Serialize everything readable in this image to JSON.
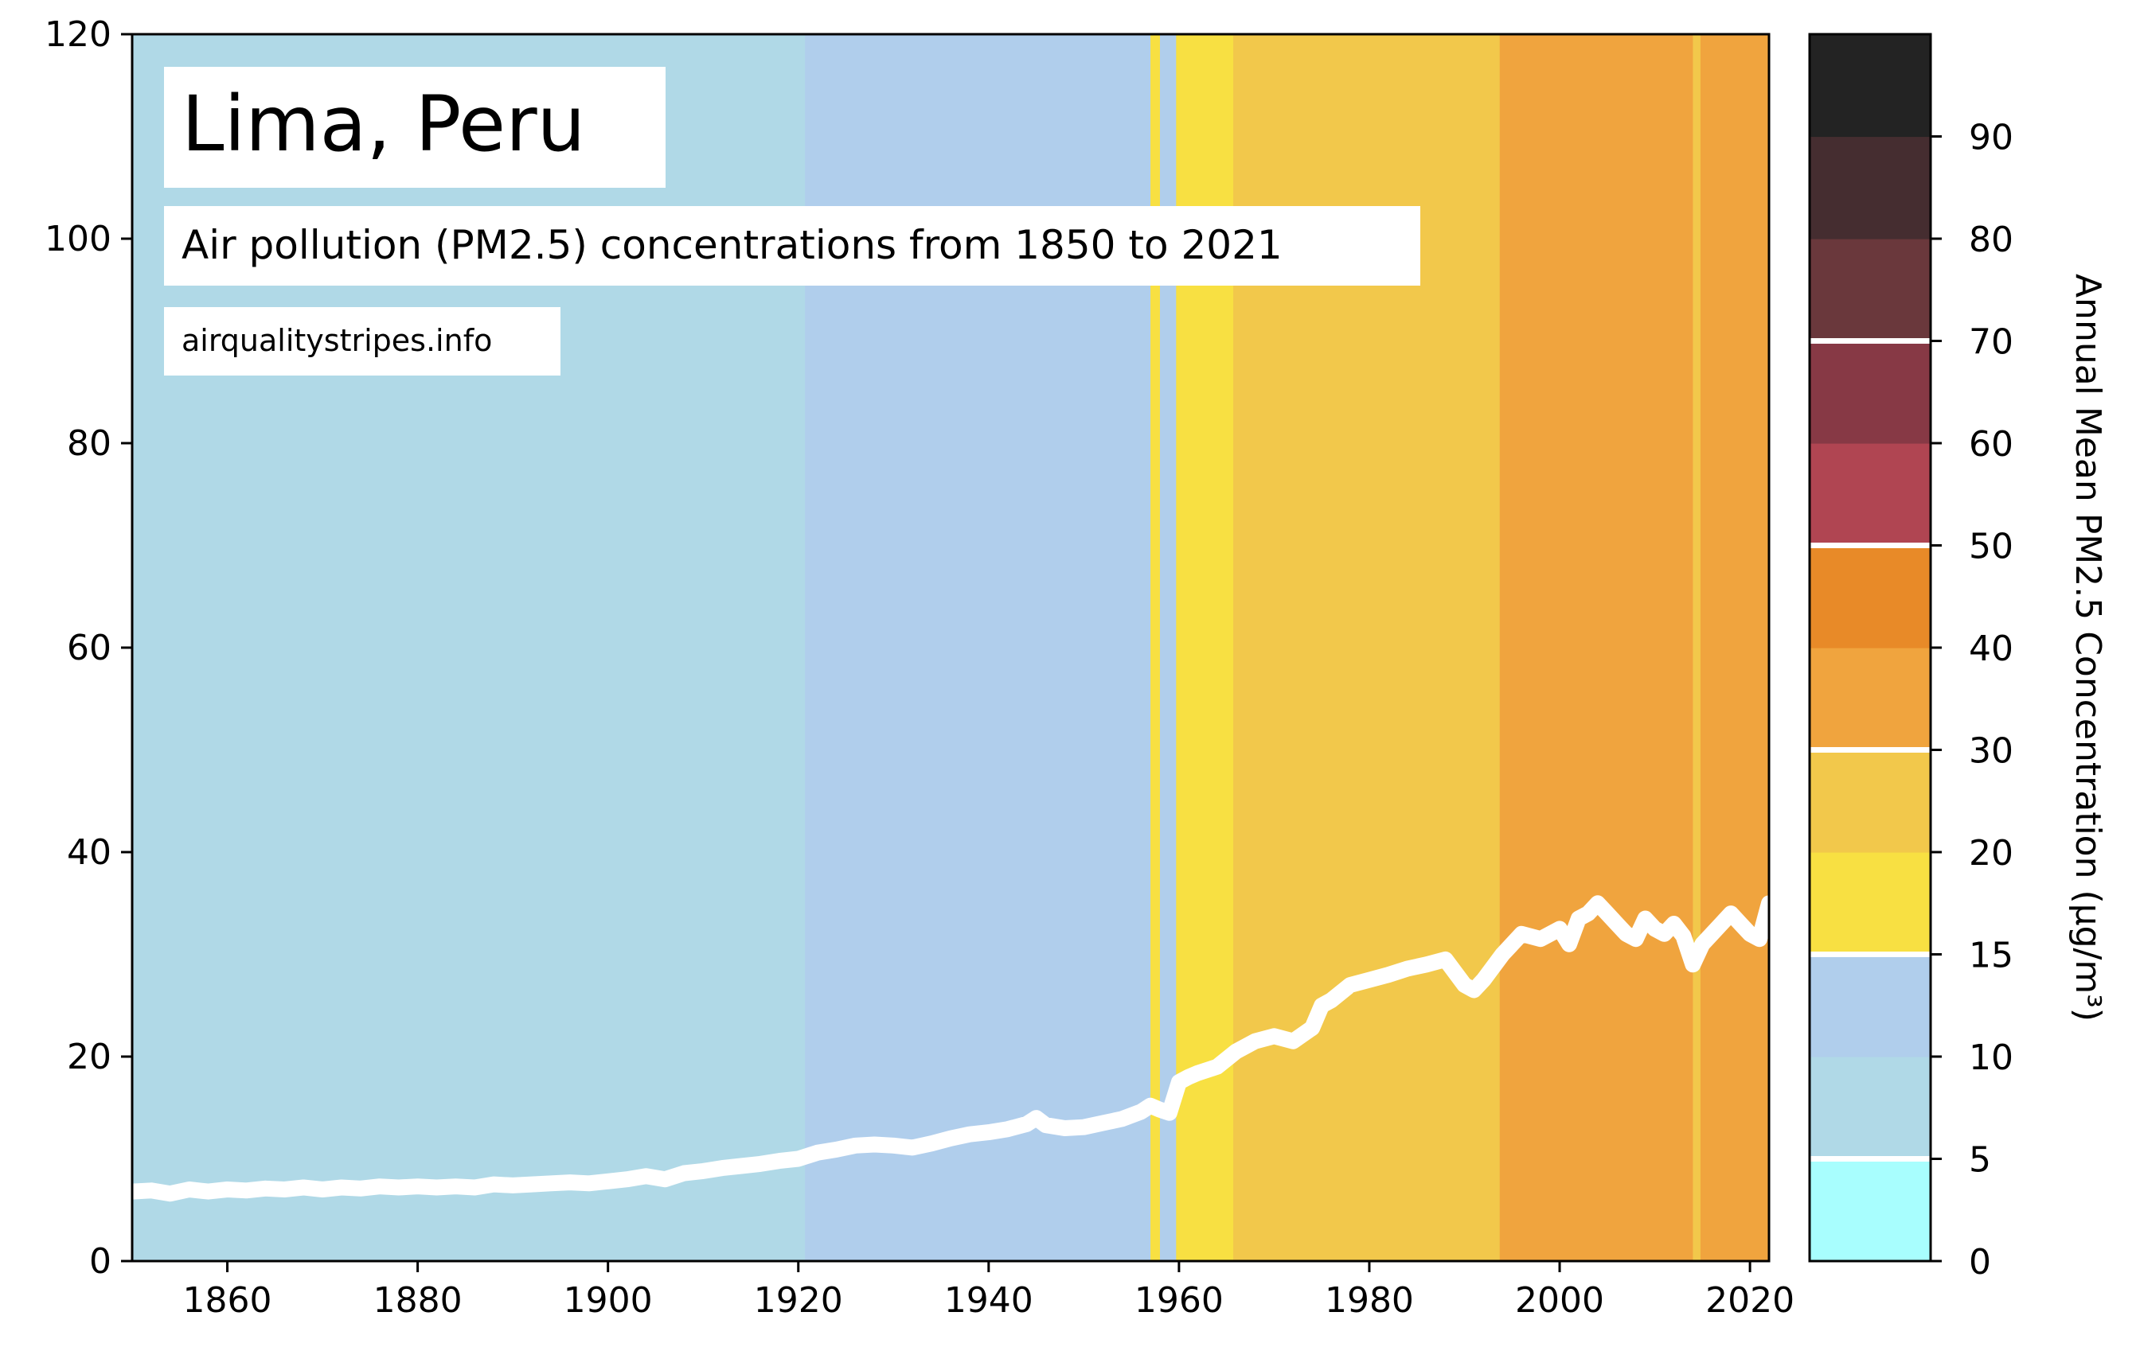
{
  "chart_data": {
    "type": "stripes-line",
    "title": "Lima, Peru",
    "subtitle": "Air pollution (PM2.5) concentrations from 1850 to 2021",
    "source": "airqualitystripes.info",
    "xlabel": "",
    "ylabel": "",
    "xlim": [
      1850,
      2022
    ],
    "ylim": [
      0,
      120
    ],
    "x_ticks": [
      1860,
      1880,
      1900,
      1920,
      1940,
      1960,
      1980,
      2000,
      2020
    ],
    "y_ticks": [
      0,
      20,
      40,
      60,
      80,
      100,
      120
    ],
    "grid": false,
    "line_color": "#ffffff",
    "stripes": [
      {
        "start": 1850,
        "end": 1920.7,
        "color": "#b0d9e7"
      },
      {
        "start": 1920.7,
        "end": 1957,
        "color": "#b0ceec"
      },
      {
        "start": 1957,
        "end": 1958,
        "color": "#f8e042"
      },
      {
        "start": 1958,
        "end": 1959.7,
        "color": "#b0ceec"
      },
      {
        "start": 1959.7,
        "end": 1965.7,
        "color": "#f8e042"
      },
      {
        "start": 1965.7,
        "end": 1993.7,
        "color": "#f2c84b"
      },
      {
        "start": 1993.7,
        "end": 2014,
        "color": "#f0a43e"
      },
      {
        "start": 2014,
        "end": 2014.8,
        "color": "#f2c84b"
      },
      {
        "start": 2014.8,
        "end": 2022,
        "color": "#f0a43e"
      }
    ],
    "series": [
      {
        "x": [
          1850,
          1852,
          1854,
          1856,
          1858,
          1860,
          1862,
          1864,
          1866,
          1868,
          1870,
          1872,
          1874,
          1876,
          1878,
          1880,
          1882,
          1884,
          1886,
          1888,
          1890,
          1892,
          1894,
          1896,
          1898,
          1900,
          1902,
          1904,
          1906,
          1908,
          1910,
          1912,
          1914,
          1916,
          1918,
          1920,
          1922,
          1924,
          1926,
          1928,
          1930,
          1932,
          1934,
          1936,
          1938,
          1940,
          1942,
          1944,
          1945,
          1946,
          1948,
          1950,
          1952,
          1954,
          1956,
          1957,
          1958,
          1959,
          1960,
          1961,
          1962,
          1964,
          1966,
          1968,
          1970,
          1972,
          1974,
          1975,
          1976,
          1978,
          1980,
          1982,
          1984,
          1986,
          1988,
          1990,
          1991,
          1992,
          1994,
          1996,
          1998,
          2000,
          2001,
          2002,
          2003,
          2004,
          2005,
          2006,
          2007,
          2008,
          2009,
          2010,
          2011,
          2012,
          2013,
          2014,
          2015,
          2016,
          2017,
          2018,
          2019,
          2020,
          2021,
          2022
        ],
        "values": [
          6.8,
          6.9,
          6.6,
          7.0,
          6.8,
          7.0,
          6.9,
          7.1,
          7.0,
          7.2,
          7.0,
          7.2,
          7.1,
          7.3,
          7.2,
          7.3,
          7.2,
          7.3,
          7.2,
          7.5,
          7.4,
          7.5,
          7.6,
          7.7,
          7.6,
          7.8,
          8.0,
          8.3,
          8.0,
          8.6,
          8.8,
          9.1,
          9.3,
          9.5,
          9.8,
          10.0,
          10.6,
          10.9,
          11.3,
          11.4,
          11.3,
          11.1,
          11.5,
          12.0,
          12.4,
          12.6,
          12.9,
          13.4,
          14.0,
          13.3,
          13.0,
          13.1,
          13.5,
          13.9,
          14.6,
          15.2,
          14.8,
          14.5,
          17.5,
          18.0,
          18.4,
          19.0,
          20.5,
          21.5,
          22.0,
          21.5,
          22.8,
          25.0,
          25.5,
          27.0,
          27.5,
          28.0,
          28.6,
          29.0,
          29.5,
          27.0,
          26.5,
          27.5,
          30.0,
          32.0,
          31.5,
          32.5,
          31.0,
          33.5,
          34.0,
          35.0,
          34.0,
          33.0,
          32.0,
          31.5,
          33.5,
          32.5,
          32.0,
          33.0,
          31.8,
          29.0,
          31.0,
          32.0,
          33.0,
          34.0,
          33.0,
          32.0,
          31.5,
          35.0
        ]
      }
    ],
    "colorbar": {
      "label": "Annual Mean PM2.5 Concentration (µg/m³)",
      "tick_labels": [
        "0",
        "5",
        "10",
        "15",
        "20",
        "30",
        "40",
        "50",
        "60",
        "70",
        "80",
        "90"
      ],
      "bins": [
        {
          "label": "0–5",
          "color": "#a8fefe"
        },
        {
          "label": "5–10",
          "color": "#b0d9e7"
        },
        {
          "label": "10–15",
          "color": "#b0ceec"
        },
        {
          "label": "15–20",
          "color": "#f8e042"
        },
        {
          "label": "20–30",
          "color": "#f2c84b"
        },
        {
          "label": "30–40",
          "color": "#f0a43e"
        },
        {
          "label": "40–50",
          "color": "#e88a28"
        },
        {
          "label": "50–60",
          "color": "#b04552"
        },
        {
          "label": "60–70",
          "color": "#873945"
        },
        {
          "label": "70–80",
          "color": "#6a383c"
        },
        {
          "label": "80–90",
          "color": "#452d30"
        },
        {
          "label": "90+",
          "color": "#232323"
        }
      ],
      "threshold_marks": [
        "5",
        "15",
        "30",
        "50",
        "70"
      ]
    }
  }
}
